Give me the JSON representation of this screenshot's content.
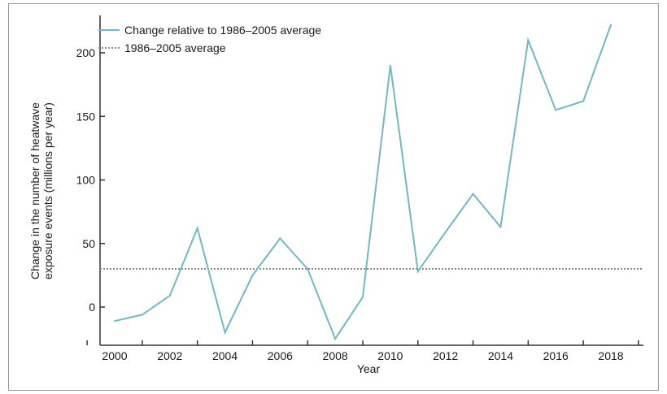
{
  "colors": {
    "series": "#6fb8c8",
    "baseline": "#8a8a8a",
    "axis": "#333333",
    "text": "#1a1a1a"
  },
  "chart_data": {
    "type": "line",
    "title": "",
    "xlabel": "Year",
    "ylabel_line1": "Change in the number of heatwave",
    "ylabel_line2": "exposure events (millions per year)",
    "x_ticks": [
      "2000",
      "2002",
      "2004",
      "2006",
      "2008",
      "2010",
      "2012",
      "2014",
      "2016",
      "2018"
    ],
    "y_ticks": [
      "0",
      "50",
      "100",
      "150",
      "200"
    ],
    "xlim": [
      1999,
      2019
    ],
    "ylim": [
      -25,
      225
    ],
    "legend_position": "top-left",
    "series": [
      {
        "name": "Change relative to 1986–2005 average",
        "x": [
          2000,
          2001,
          2002,
          2003,
          2004,
          2005,
          2006,
          2007,
          2008,
          2009,
          2010,
          2011,
          2012,
          2013,
          2014,
          2015,
          2016,
          2017,
          2018
        ],
        "values": [
          -11,
          -6,
          9,
          62,
          -20,
          25,
          54,
          30,
          -25,
          8,
          190,
          28,
          59,
          89,
          63,
          210,
          155,
          162,
          222
        ]
      }
    ],
    "reference_line": {
      "name": "1986–2005 average",
      "value": 30
    }
  }
}
